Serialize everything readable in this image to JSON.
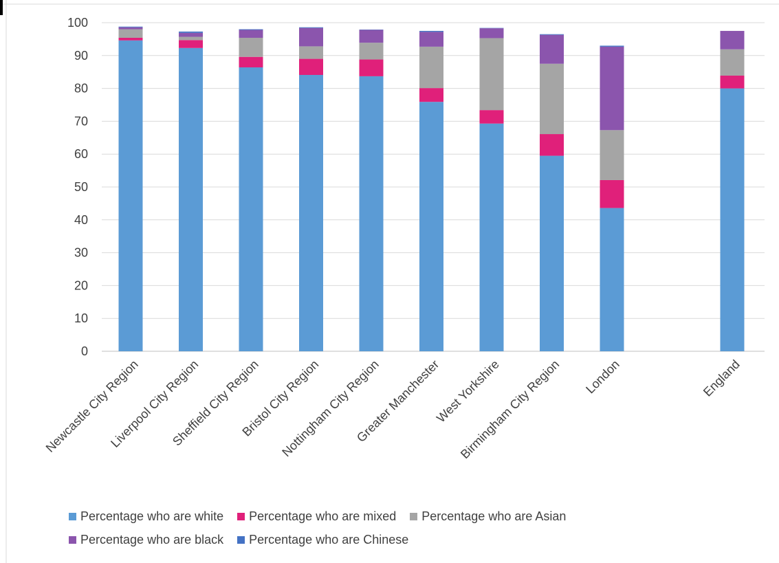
{
  "chart_data": {
    "type": "bar",
    "stacked": true,
    "title": "",
    "xlabel": "",
    "ylabel": "",
    "ylim": [
      0,
      100
    ],
    "yticks": [
      0,
      10,
      20,
      30,
      40,
      50,
      60,
      70,
      80,
      90,
      100
    ],
    "grid": true,
    "legend_position": "bottom",
    "categories": [
      "Newcastle City Region",
      "Liverpool City Region",
      "Sheffield City Region",
      "Bristol City Region",
      "Nottingham City Region",
      "Greater Manchester",
      "West Yorkshire",
      "Birmingham City Region",
      "London",
      "",
      "England"
    ],
    "series": [
      {
        "name": "Percentage who are white",
        "color": "#5B9BD5",
        "values": [
          94.6,
          92.3,
          86.4,
          84.1,
          83.7,
          75.9,
          69.3,
          59.5,
          43.6,
          null,
          80.0
        ]
      },
      {
        "name": "Percentage who are mixed",
        "color": "#E0207A",
        "values": [
          0.8,
          2.4,
          3.2,
          4.9,
          5.1,
          4.2,
          4.1,
          6.6,
          8.5,
          null,
          3.9
        ]
      },
      {
        "name": "Percentage who are Asian",
        "color": "#A5A5A5",
        "values": [
          2.6,
          1.0,
          5.8,
          3.8,
          5.1,
          12.6,
          21.9,
          21.4,
          15.2,
          null,
          8.0
        ]
      },
      {
        "name": "Percentage who are black",
        "color": "#8B55AD",
        "values": [
          0.6,
          1.2,
          2.4,
          5.6,
          3.9,
          4.5,
          3.0,
          8.8,
          25.4,
          null,
          5.6
        ]
      },
      {
        "name": "Percentage who are Chinese",
        "color": "#4472C4",
        "values": [
          0.2,
          0.4,
          0.2,
          0.2,
          0.1,
          0.3,
          0.1,
          0.2,
          0.3,
          null,
          0.0
        ]
      }
    ]
  }
}
